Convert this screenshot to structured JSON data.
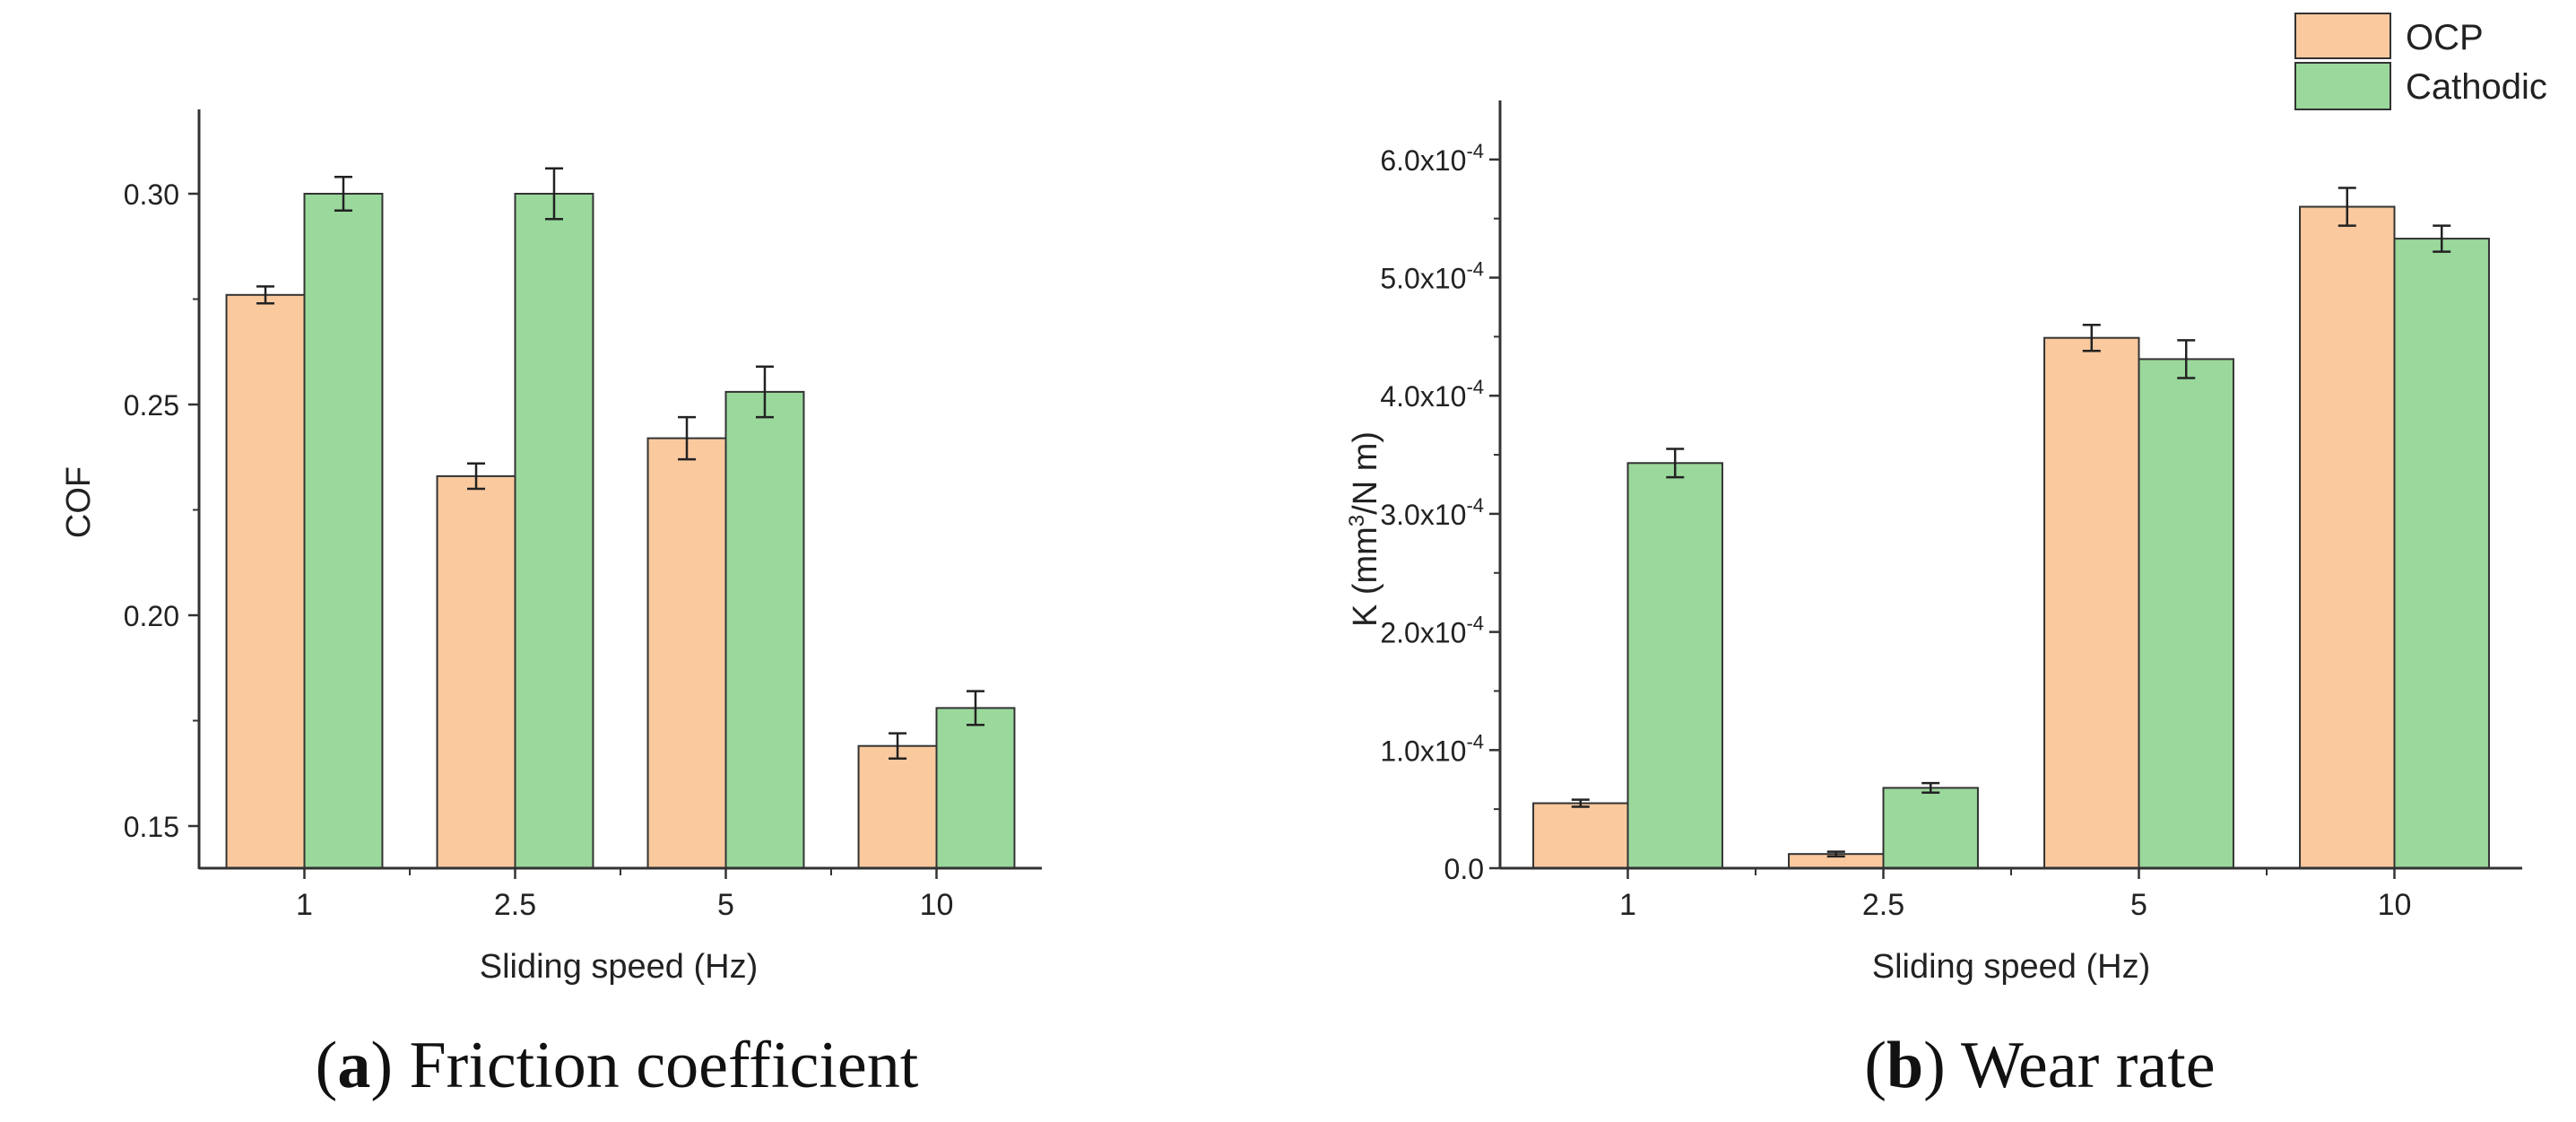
{
  "legend": {
    "items": [
      {
        "label": "OCP",
        "color": "#fac99e"
      },
      {
        "label": "Cathodic",
        "color": "#9ad89b"
      }
    ]
  },
  "colors": {
    "ocp": "#fac99e",
    "cathodic": "#9ad89b",
    "axis": "#333333"
  },
  "captions": {
    "a": {
      "letter": "a",
      "text": "Friction coefficient"
    },
    "b": {
      "letter": "b",
      "text": "Wear rate"
    }
  },
  "chart_data": [
    {
      "type": "bar",
      "id": "a",
      "title": "",
      "xlabel": "Sliding speed (Hz)",
      "ylabel": "COF",
      "categories": [
        "1",
        "2.5",
        "5",
        "10"
      ],
      "ylim": [
        0.14,
        0.32
      ],
      "yticks": [
        {
          "value": 0.15,
          "label": "0.15"
        },
        {
          "value": 0.2,
          "label": "0.20"
        },
        {
          "value": 0.25,
          "label": "0.25"
        },
        {
          "value": 0.3,
          "label": "0.30"
        }
      ],
      "series": [
        {
          "name": "OCP",
          "values": [
            0.276,
            0.233,
            0.242,
            0.169
          ],
          "errors": [
            0.002,
            0.003,
            0.005,
            0.003
          ]
        },
        {
          "name": "Cathodic",
          "values": [
            0.3,
            0.3,
            0.253,
            0.178
          ],
          "errors": [
            0.004,
            0.006,
            0.006,
            0.004
          ]
        }
      ],
      "grid": false
    },
    {
      "type": "bar",
      "id": "b",
      "title": "",
      "xlabel": "Sliding speed (Hz)",
      "ylabel_main": "K (mm",
      "ylabel_sup": "3",
      "ylabel_rest": "/N m)",
      "categories": [
        "1",
        "2.5",
        "5",
        "10"
      ],
      "ylim": [
        0,
        0.00065
      ],
      "yticks": [
        {
          "value": 0.0,
          "base": "0.0",
          "exp": ""
        },
        {
          "value": 0.0001,
          "base": "1.0x10",
          "exp": "-4"
        },
        {
          "value": 0.0002,
          "base": "2.0x10",
          "exp": "-4"
        },
        {
          "value": 0.0003,
          "base": "3.0x10",
          "exp": "-4"
        },
        {
          "value": 0.0004,
          "base": "4.0x10",
          "exp": "-4"
        },
        {
          "value": 0.0005,
          "base": "5.0x10",
          "exp": "-4"
        },
        {
          "value": 0.0006,
          "base": "6.0x10",
          "exp": "-4"
        }
      ],
      "series": [
        {
          "name": "OCP",
          "values": [
            5.5e-05,
            1.2e-05,
            0.000449,
            0.00056
          ],
          "errors": [
            3e-06,
            2e-06,
            1.1e-05,
            1.6e-05
          ]
        },
        {
          "name": "Cathodic",
          "values": [
            0.000343,
            6.8e-05,
            0.000431,
            0.000533
          ],
          "errors": [
            1.2e-05,
            4e-06,
            1.6e-05,
            1.1e-05
          ]
        }
      ],
      "grid": false,
      "legend_position": "top-right"
    }
  ]
}
